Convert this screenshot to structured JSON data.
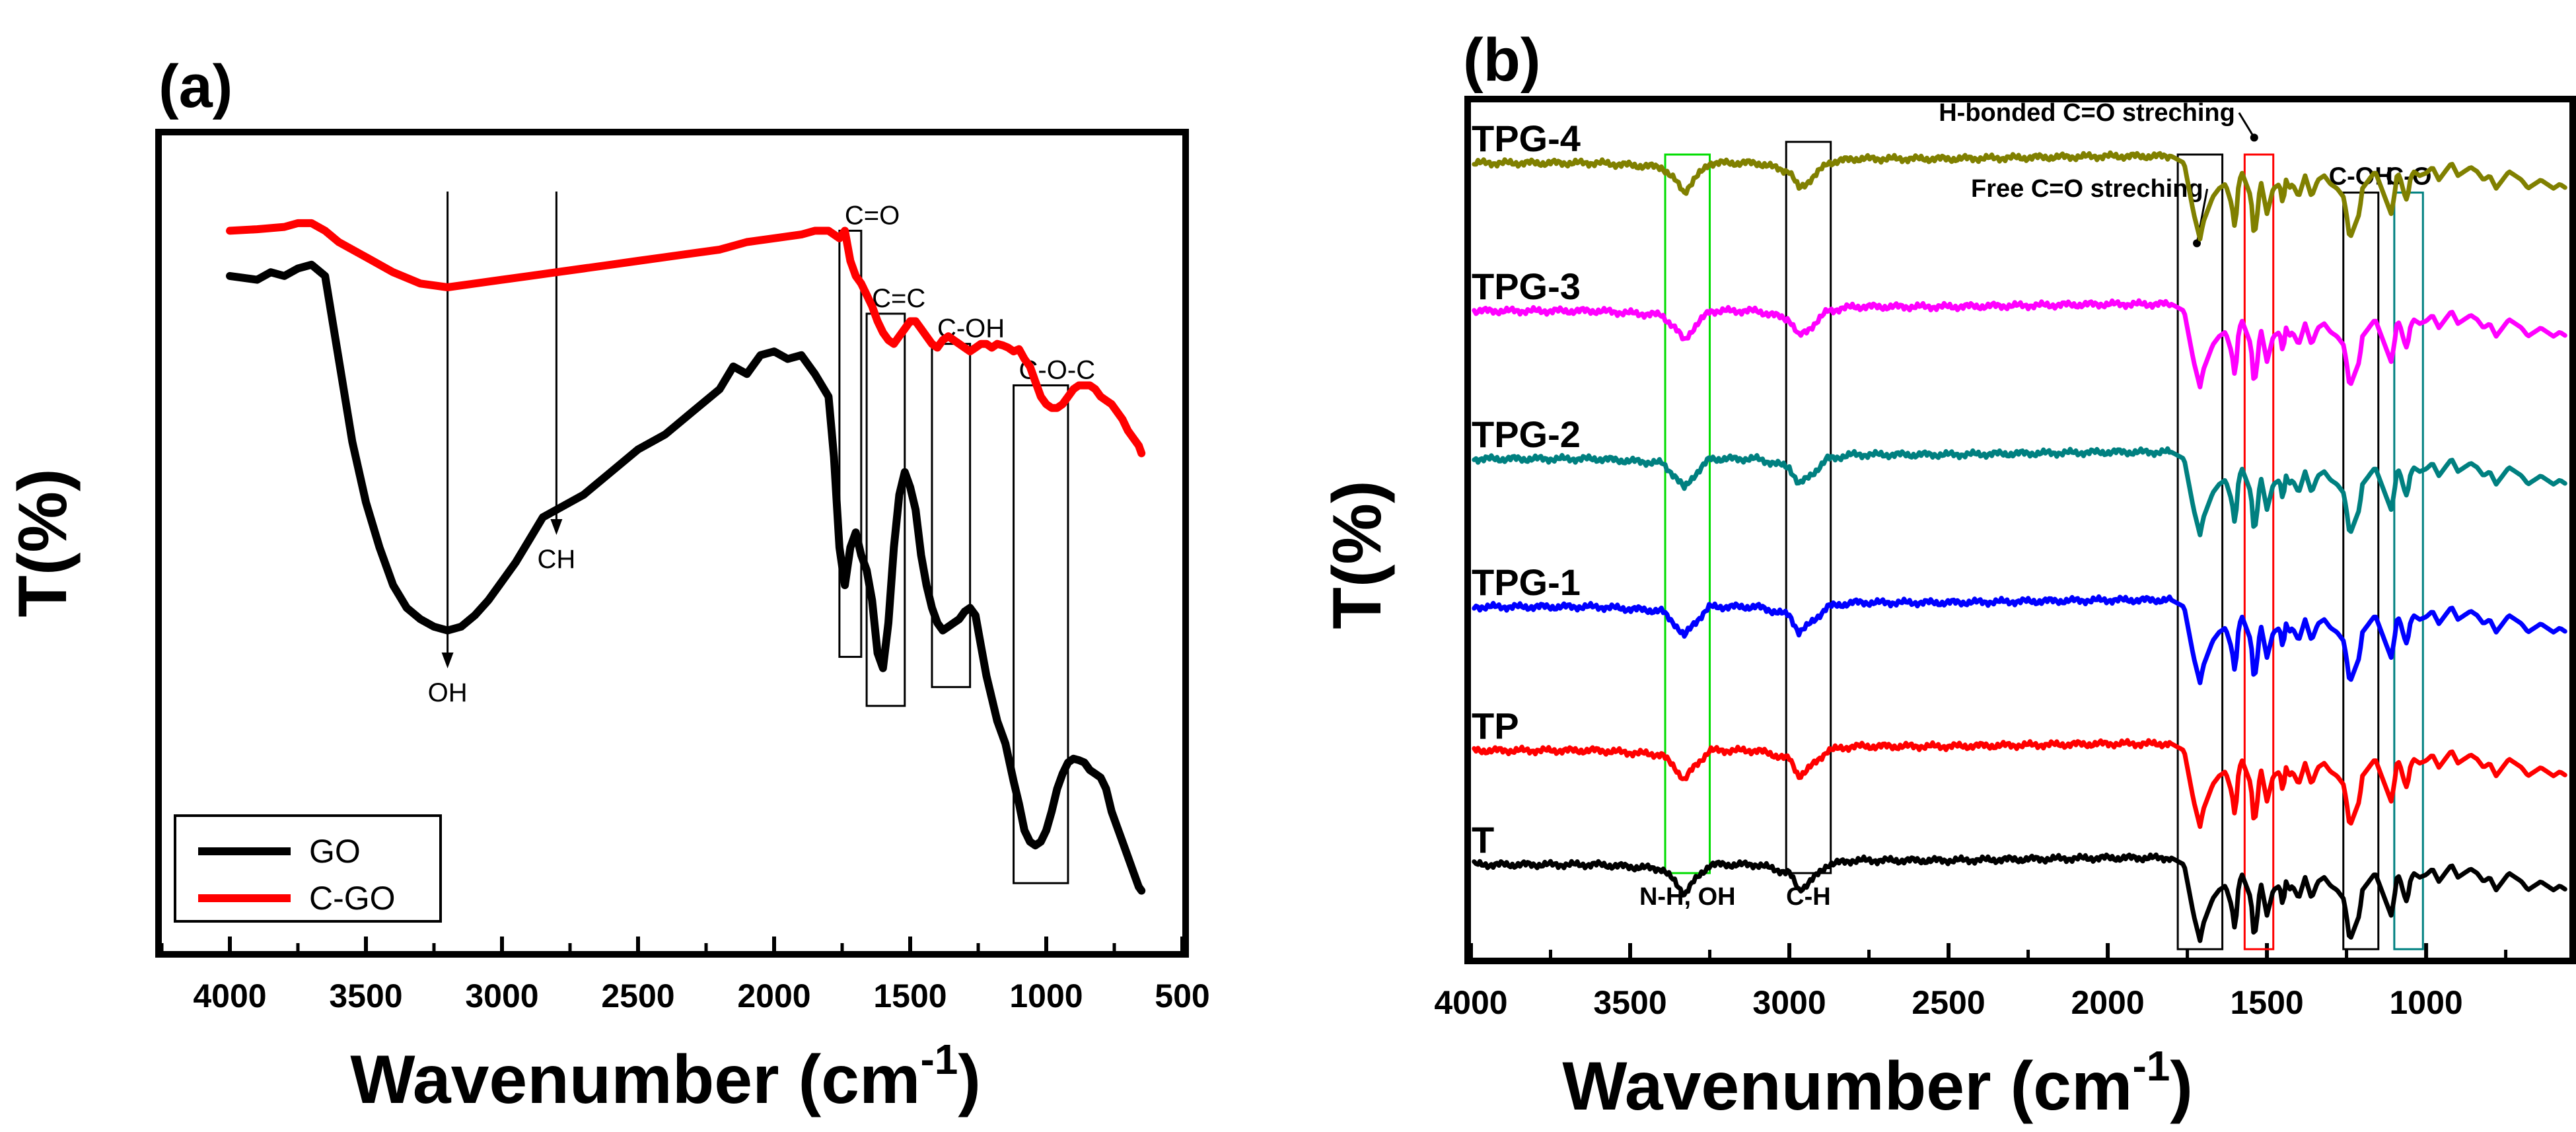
{
  "chart_data": [
    {
      "type": "line",
      "panel_label": "(a)",
      "xlabel": "Wavenumber (cm",
      "xlabel_sup": "-1",
      "xlabel_tail": ")",
      "ylabel": "T(%)",
      "xlim": [
        4250,
        500
      ],
      "ylim": [
        0,
        100
      ],
      "xticks": [
        4000,
        3500,
        3000,
        2500,
        2000,
        1500,
        1000,
        500
      ],
      "xtick_labels": [
        "4000",
        "3500",
        "3000",
        "2500",
        "2000",
        "1500",
        "1000",
        "500"
      ],
      "legend": {
        "location": "bottom-left",
        "entries": [
          "GO",
          "C-GO"
        ]
      },
      "series": [
        {
          "name": "GO",
          "color": "#000000",
          "x": [
            4000,
            3900,
            3850,
            3800,
            3750,
            3700,
            3650,
            3600,
            3550,
            3500,
            3450,
            3400,
            3350,
            3300,
            3250,
            3200,
            3150,
            3100,
            3050,
            3000,
            2950,
            2900,
            2850,
            2800,
            2700,
            2600,
            2500,
            2400,
            2300,
            2200,
            2150,
            2100,
            2050,
            2000,
            1950,
            1900,
            1850,
            1800,
            1780,
            1760,
            1740,
            1720,
            1700,
            1680,
            1660,
            1640,
            1620,
            1600,
            1580,
            1560,
            1540,
            1520,
            1500,
            1480,
            1460,
            1440,
            1420,
            1400,
            1380,
            1360,
            1340,
            1320,
            1300,
            1280,
            1260,
            1240,
            1220,
            1200,
            1180,
            1150,
            1120,
            1100,
            1080,
            1060,
            1040,
            1020,
            1000,
            980,
            960,
            940,
            920,
            900,
            880,
            860,
            840,
            820,
            800,
            780,
            760,
            740,
            720,
            700,
            680,
            660,
            650
          ],
          "values": [
            86,
            85.5,
            86.5,
            86,
            87,
            87.5,
            86,
            75,
            64,
            56,
            50,
            45,
            42,
            40.5,
            39.5,
            39,
            39.5,
            41,
            43,
            45.5,
            48,
            51,
            54,
            55,
            57,
            60,
            63,
            65,
            68,
            71,
            74,
            73,
            75.5,
            76,
            75,
            75.5,
            73,
            70,
            62,
            50,
            45,
            50,
            52,
            49,
            47,
            43,
            36,
            34,
            40,
            50,
            57,
            60,
            58,
            55,
            49,
            45,
            42,
            40,
            39,
            39.5,
            40,
            40.5,
            41.5,
            42,
            41,
            37,
            33,
            30,
            27,
            24,
            19,
            16,
            12.5,
            11,
            10.5,
            11,
            12.5,
            15,
            18,
            20,
            21.5,
            22,
            21.8,
            21.5,
            20.5,
            20,
            19.5,
            18,
            15,
            13,
            11,
            9,
            7,
            5,
            4.5
          ]
        },
        {
          "name": "C-GO",
          "color": "#ff0000",
          "x": [
            4000,
            3900,
            3800,
            3750,
            3700,
            3650,
            3600,
            3500,
            3400,
            3300,
            3200,
            3100,
            3000,
            2900,
            2800,
            2700,
            2600,
            2500,
            2400,
            2300,
            2200,
            2100,
            2000,
            1900,
            1850,
            1800,
            1780,
            1760,
            1740,
            1720,
            1700,
            1680,
            1660,
            1640,
            1620,
            1600,
            1580,
            1560,
            1540,
            1520,
            1500,
            1480,
            1460,
            1440,
            1420,
            1400,
            1380,
            1360,
            1340,
            1320,
            1300,
            1280,
            1260,
            1240,
            1220,
            1200,
            1180,
            1160,
            1140,
            1120,
            1100,
            1080,
            1060,
            1040,
            1020,
            1000,
            980,
            960,
            940,
            920,
            900,
            880,
            860,
            840,
            820,
            800,
            780,
            760,
            740,
            720,
            700,
            680,
            660,
            650
          ],
          "values": [
            92,
            92.2,
            92.5,
            93,
            93,
            92,
            90.5,
            88.5,
            86.5,
            85,
            84.5,
            85,
            85.5,
            86,
            86.5,
            87,
            87.5,
            88,
            88.5,
            89,
            89.5,
            90.5,
            91,
            91.5,
            92,
            92,
            91.5,
            91,
            92,
            88,
            86,
            85,
            83.5,
            82,
            80,
            78.5,
            77.5,
            77,
            78,
            79,
            80,
            80,
            79,
            78,
            77,
            76.5,
            77.5,
            78,
            77.5,
            77,
            76.5,
            76,
            76.5,
            77,
            77,
            76.5,
            77,
            76.8,
            76.5,
            76,
            76.3,
            75,
            74,
            72,
            70,
            69,
            68.5,
            68.5,
            69,
            70,
            71,
            71.5,
            71.5,
            71.5,
            71,
            70,
            69.5,
            69,
            68,
            67,
            65.5,
            64.5,
            63.5,
            62.5
          ]
        }
      ],
      "annotations": {
        "arrows": [
          {
            "label": "OH",
            "x": 3200
          },
          {
            "label": "CH",
            "x": 2800
          }
        ],
        "boxes": [
          {
            "label": "C=O",
            "x1": 1760,
            "x2": 1680,
            "y_top": 92,
            "y_bot": 35.5
          },
          {
            "label": "C=C",
            "x1": 1660,
            "x2": 1520,
            "y_top": 81,
            "y_bot": 29
          },
          {
            "label": "C-OH",
            "x1": 1420,
            "x2": 1280,
            "y_top": 77,
            "y_bot": 31.5
          },
          {
            "label": "C-O-C",
            "x1": 1120,
            "x2": 920,
            "y_top": 71.5,
            "y_bot": 5.5
          }
        ]
      }
    },
    {
      "type": "line",
      "panel_label": "(b)",
      "xlabel": "Wavenumber (cm",
      "xlabel_sup": "-1",
      "xlabel_tail": ")",
      "ylabel": "T(%)",
      "xlim": [
        4000,
        550
      ],
      "ylim": [
        0,
        100
      ],
      "xticks": [
        4000,
        3500,
        3000,
        2500,
        2000,
        1500,
        1000
      ],
      "xtick_labels": [
        "4000",
        "3500",
        "3000",
        "2500",
        "2000",
        "1500",
        "1000"
      ],
      "series_labels": [
        "TPG-4",
        "TPG-3",
        "TPG-2",
        "TPG-1",
        "TP",
        "T"
      ],
      "series": [
        {
          "name": "TPG-4",
          "color": "#808000",
          "offset": 94
        },
        {
          "name": "TPG-3",
          "color": "#ff00ff",
          "offset": 76.5
        },
        {
          "name": "TPG-2",
          "color": "#008080",
          "offset": 59
        },
        {
          "name": "TPG-1",
          "color": "#0000ff",
          "offset": 41.5
        },
        {
          "name": "TP",
          "color": "#ff0000",
          "offset": 24.5
        },
        {
          "name": "T",
          "color": "#000000",
          "offset": 11
        }
      ],
      "base_profile": {
        "x": [
          4000,
          3600,
          3400,
          3360,
          3330,
          3300,
          3250,
          3100,
          3000,
          2970,
          2950,
          2920,
          2880,
          2800,
          2500,
          2000,
          1800,
          1760,
          1740,
          1730,
          1710,
          1700,
          1690,
          1670,
          1650,
          1630,
          1610,
          1600,
          1590,
          1580,
          1570,
          1550,
          1540,
          1530,
          1520,
          1510,
          1500,
          1480,
          1460,
          1450,
          1440,
          1430,
          1420,
          1400,
          1380,
          1360,
          1340,
          1320,
          1300,
          1280,
          1260,
          1250,
          1240,
          1230,
          1220,
          1210,
          1200,
          1180,
          1160,
          1140,
          1120,
          1110,
          1100,
          1090,
          1080,
          1070,
          1060,
          1050,
          1040,
          1020,
          1000,
          980,
          960,
          940,
          920,
          900,
          880,
          860,
          840,
          820,
          800,
          780,
          760,
          740,
          720,
          700,
          680,
          660,
          640,
          620,
          600,
          580,
          560
        ],
        "dy": [
          0,
          0,
          -0.5,
          -2,
          -3.5,
          -2,
          0,
          0,
          -1,
          -3,
          -2.5,
          -1.5,
          0,
          0.5,
          0.5,
          0.8,
          0.8,
          0,
          -4,
          -6,
          -9,
          -7,
          -6,
          -4,
          -3,
          -2.5,
          -5,
          -8,
          -3,
          -1,
          -2,
          -4,
          -9,
          -6,
          -2,
          -4,
          -6,
          -3,
          -2.5,
          -5,
          -2,
          -3,
          -2.5,
          -4,
          -1.5,
          -4,
          -2,
          -1.5,
          -2.5,
          -3,
          -4,
          -6,
          -9,
          -8,
          -7,
          -6,
          -3,
          -2,
          -1,
          -3,
          -5,
          -6,
          -4,
          -1,
          -2,
          -3.5,
          -4.5,
          -2,
          -1,
          -1.5,
          -1.2,
          -0.5,
          -2,
          -1,
          0,
          -1.5,
          -1,
          -0.5,
          -1,
          -2,
          -1.5,
          -3,
          -2,
          -1,
          -1.5,
          -2,
          -3,
          -2.5,
          -2,
          -2.5,
          -3,
          -2.5,
          -3
        ]
      },
      "annotations": {
        "boxes": [
          {
            "label": "N-H, OH",
            "x1": 3390,
            "x2": 3250,
            "y_top": 95,
            "y_bot": 10,
            "color": "#00dd00"
          },
          {
            "label": "C-H",
            "x1": 3010,
            "x2": 2870,
            "y_top": 96.5,
            "y_bot": 10,
            "color": "#000000"
          },
          {
            "label": "",
            "x1": 1780,
            "x2": 1640,
            "y_top": 95,
            "y_bot": 1,
            "color": "#000000"
          },
          {
            "label": "",
            "x1": 1570,
            "x2": 1480,
            "y_top": 95,
            "y_bot": 1,
            "color": "#ff0000"
          },
          {
            "label": "C-OH",
            "x1": 1260,
            "x2": 1150,
            "y_top": 90.5,
            "y_bot": 1,
            "color": "#000000"
          },
          {
            "label": "C-O",
            "x1": 1100,
            "x2": 1010,
            "y_top": 90.5,
            "y_bot": 1,
            "color": "#008080"
          }
        ],
        "texts": [
          {
            "label": "H-bonded C=O streching",
            "x": 1600,
            "y": 99,
            "arrow_to_x": 1540
          },
          {
            "label": "Free C=O streching",
            "x": 1700,
            "y": 90,
            "arrow_to_x": 1720
          }
        ]
      }
    }
  ]
}
